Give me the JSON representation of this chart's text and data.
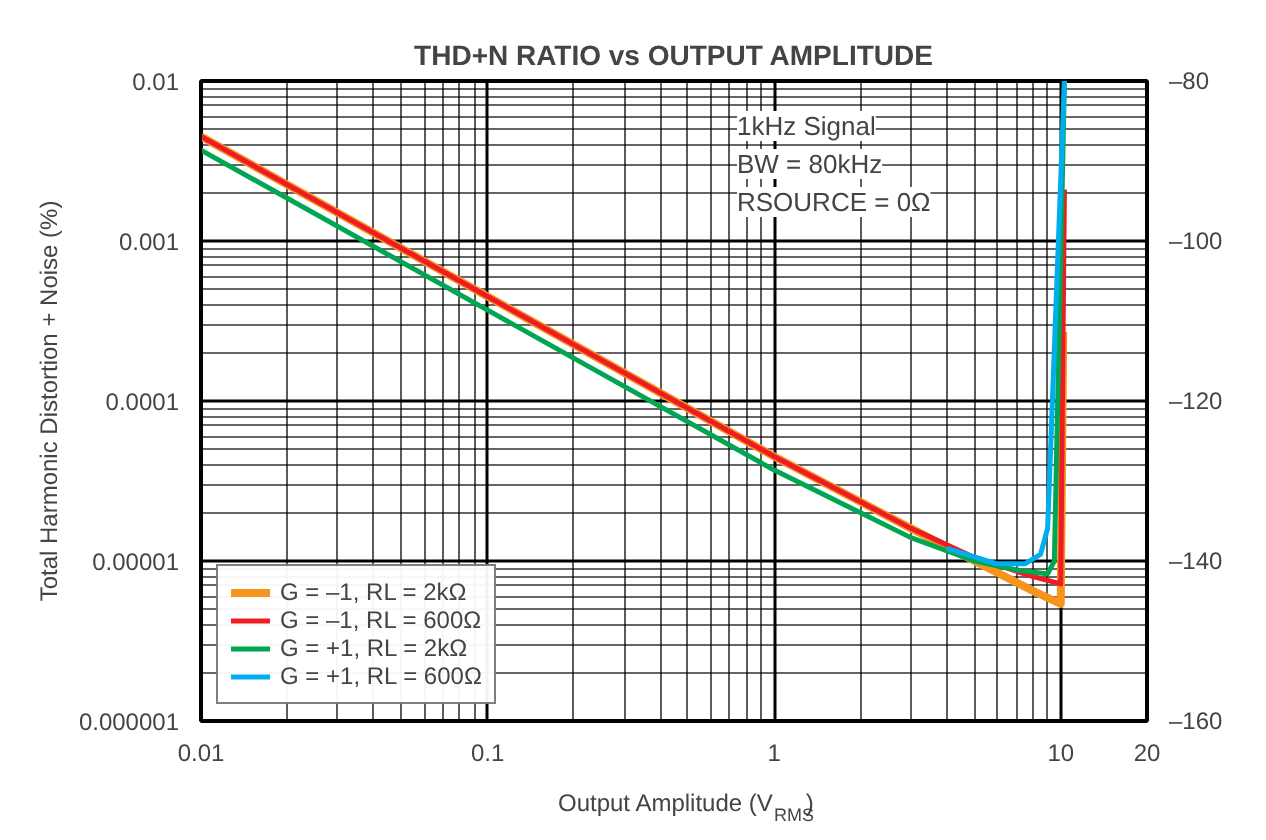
{
  "chart_data": {
    "type": "line",
    "title": "THD+N RATIO vs OUTPUT AMPLITUDE",
    "xlabel": "Output Amplitude (V$_{RMS}$)",
    "ylabel": "Total Harmonic Distortion + Noise (%)",
    "log": "xy",
    "grid": true,
    "legend": "bottom left",
    "line_style": "solid",
    "xlim": [
      0.01,
      20
    ],
    "xticks": [
      0.01,
      0.1,
      1,
      10,
      20
    ],
    "ylim": [
      1e-06,
      0.01
    ],
    "yticks": [
      {
        "value": 1e-06,
        "label": "0.000001"
      },
      {
        "value": 1e-05,
        "label": "0.00001"
      },
      {
        "value": 0.0001,
        "label": "0.0001"
      },
      {
        "value": 0.001,
        "label": "0.001"
      },
      {
        "value": 0.01,
        "label": "0.01"
      }
    ],
    "y2lim": [
      -160,
      -80
    ],
    "y2ticks": [
      {
        "value": -160,
        "label": "–160"
      },
      {
        "value": -140,
        "label": "–140"
      },
      {
        "value": -120,
        "label": "–120"
      },
      {
        "value": -100,
        "label": "–100"
      },
      {
        "value": -80,
        "label": "–80"
      }
    ],
    "annotations": [
      "1kHz Signal",
      "BW = 80kHz",
      "RSOURCE = 0Ω"
    ],
    "series": [
      {
        "name": "G = –1, RL = 2kΩ",
        "color": "#f7941d",
        "x": [
          0.01,
          0.1,
          1,
          3,
          5,
          8,
          10,
          10.2
        ],
        "values": [
          0.0045,
          0.00045,
          4.5e-05,
          1.6e-05,
          1e-05,
          6.5e-06,
          5.4e-06,
          0.00027
        ]
      },
      {
        "name": "G = –1, RL = 600Ω",
        "color": "#ed1c24",
        "x": [
          0.01,
          0.1,
          1,
          3,
          5,
          8,
          10,
          10.3
        ],
        "values": [
          0.0045,
          0.00045,
          4.5e-05,
          1.6e-05,
          1.05e-05,
          8e-06,
          7.2e-06,
          0.0021
        ]
      },
      {
        "name": "G = +1, RL = 2kΩ",
        "color": "#00a651",
        "x": [
          0.01,
          0.1,
          1,
          3,
          5,
          7,
          9,
          9.5,
          10.3
        ],
        "values": [
          0.0037,
          0.00037,
          3.7e-05,
          1.4e-05,
          1e-05,
          8.8e-06,
          8.3e-06,
          1e-05,
          0.01
        ]
      },
      {
        "name": "G = +1, RL = 600Ω",
        "color": "#00aeef",
        "x": [
          4,
          6,
          7.5,
          8.5,
          9,
          10.3
        ],
        "values": [
          1.2e-05,
          9.6e-06,
          9.6e-06,
          1.1e-05,
          1.6e-05,
          0.01
        ]
      }
    ]
  }
}
